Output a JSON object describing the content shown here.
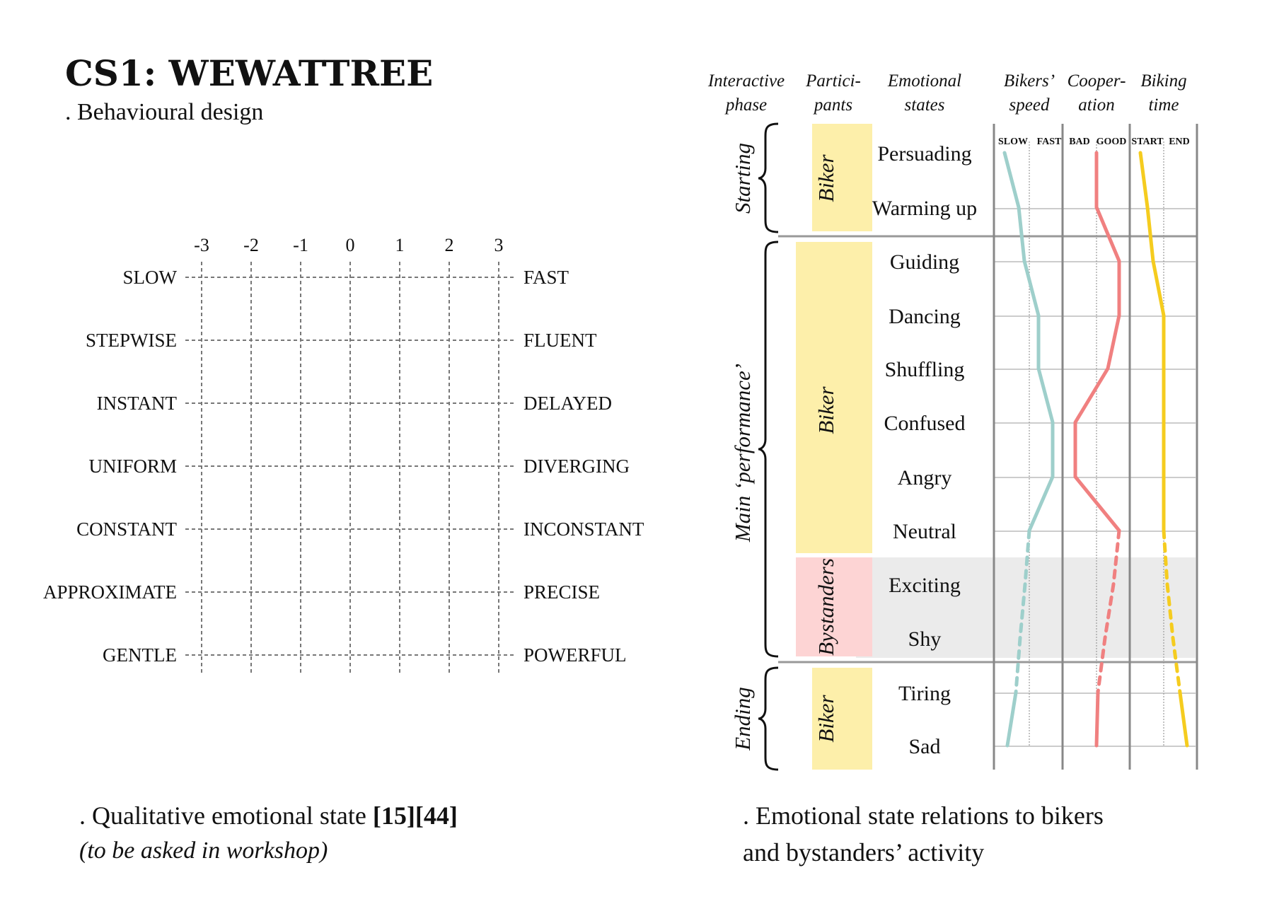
{
  "title": "CS1: WEWATTREE",
  "subtitle": ". Behavioural design",
  "scale": {
    "ticks": [
      "-3",
      "-2",
      "-1",
      "0",
      "1",
      "2",
      "3"
    ],
    "rows": [
      {
        "left": "SLOW",
        "right": "FAST"
      },
      {
        "left": "STEPWISE",
        "right": "FLUENT"
      },
      {
        "left": "INSTANT",
        "right": "DELAYED"
      },
      {
        "left": "UNIFORM",
        "right": "DIVERGING"
      },
      {
        "left": "CONSTANT",
        "right": "INCONSTANT"
      },
      {
        "left": "APPROXIMATE",
        "right": "PRECISE"
      },
      {
        "left": "GENTLE",
        "right": "POWERFUL"
      }
    ]
  },
  "left_caption": {
    "prefix": ". Qualitative emotional state ",
    "refs": "[15][44]",
    "note": "(to be asked in workshop)"
  },
  "right_caption": {
    "line1": ". Emotional state relations to bikers",
    "line2": "and bystanders’ activity"
  },
  "table": {
    "headers": {
      "phase": [
        "Interactive",
        "phase"
      ],
      "participants": [
        "Partici-",
        "pants"
      ],
      "states": [
        "Emotional",
        "states"
      ],
      "speed": [
        "Bikers’",
        "speed"
      ],
      "cooperation": [
        "Cooper-",
        "ation"
      ],
      "time": [
        "Biking",
        "time"
      ]
    },
    "subheaders": {
      "speed": [
        "SLOW",
        "FAST"
      ],
      "cooperation": [
        "BAD",
        "GOOD"
      ],
      "time": [
        "START",
        "END"
      ]
    },
    "phases": [
      "Starting",
      "Main ‘performance’",
      "Ending"
    ],
    "participant_blocks": [
      "Biker",
      "Biker",
      "Bystanders",
      "Biker"
    ],
    "states": [
      "Persuading",
      "Warming up",
      "Guiding",
      "Dancing",
      "Shuffling",
      "Confused",
      "Angry",
      "Neutral",
      "Exciting",
      "Shy",
      "Tiring",
      "Sad"
    ],
    "colors": {
      "speed": "#9ecfcb",
      "cooperation": "#f08080",
      "time": "#f5cc1f",
      "biker_fill": "#fdefaa",
      "bystander_fill": "#fdd4d4",
      "bystander_band": "#ebebeb"
    }
  }
}
